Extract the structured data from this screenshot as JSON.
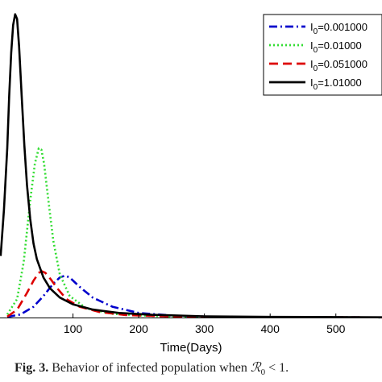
{
  "chart_data": {
    "type": "line",
    "title": "",
    "xlabel": "Time(Days)",
    "ylabel": "",
    "xlim": [
      -10,
      600
    ],
    "ylim": [
      0,
      1
    ],
    "x_ticks": [
      100,
      200,
      300,
      400,
      500
    ],
    "grid": false,
    "legend_position": "top-right",
    "series": [
      {
        "name_prefix": "I",
        "name_sub": "0",
        "name_value": "=0.001000",
        "color": "#0000cc",
        "style": "dash-dot",
        "x": [
          0,
          20,
          40,
          55,
          70,
          80,
          88,
          95,
          110,
          130,
          160,
          200,
          260,
          330,
          400,
          600
        ],
        "y": [
          0.002,
          0.01,
          0.035,
          0.07,
          0.11,
          0.13,
          0.136,
          0.13,
          0.1,
          0.065,
          0.035,
          0.015,
          0.005,
          0.002,
          0.001,
          0.0005
        ]
      },
      {
        "name_prefix": "I",
        "name_sub": "0",
        "name_value": "=0.01000",
        "color": "#33dd33",
        "style": "dotted",
        "x": [
          0,
          15,
          25,
          35,
          42,
          48,
          52,
          56,
          62,
          70,
          80,
          95,
          120,
          160,
          220,
          300,
          400,
          600
        ],
        "y": [
          0.01,
          0.06,
          0.18,
          0.38,
          0.5,
          0.55,
          0.545,
          0.5,
          0.39,
          0.25,
          0.14,
          0.07,
          0.03,
          0.012,
          0.005,
          0.002,
          0.001,
          0.0005
        ]
      },
      {
        "name_prefix": "I",
        "name_sub": "0",
        "name_value": "=0.051000",
        "color": "#dd0000",
        "style": "dashed",
        "x": [
          0,
          15,
          30,
          40,
          48,
          53,
          58,
          66,
          76,
          90,
          110,
          140,
          180,
          240,
          320,
          420,
          600
        ],
        "y": [
          0.003,
          0.025,
          0.08,
          0.12,
          0.145,
          0.15,
          0.145,
          0.125,
          0.095,
          0.06,
          0.035,
          0.018,
          0.008,
          0.004,
          0.002,
          0.001,
          0.0005
        ]
      },
      {
        "name_prefix": "I",
        "name_sub": "0",
        "name_value": "=1.01000",
        "color": "#000000",
        "style": "solid",
        "x": [
          -10,
          -5,
          0,
          3,
          6,
          9,
          12,
          15,
          18,
          22,
          26,
          30,
          35,
          40,
          45,
          55,
          65,
          80,
          100,
          130,
          170,
          220,
          300,
          400,
          600
        ],
        "y": [
          0.2,
          0.35,
          0.55,
          0.72,
          0.86,
          0.95,
          0.985,
          0.97,
          0.88,
          0.72,
          0.56,
          0.43,
          0.32,
          0.24,
          0.19,
          0.13,
          0.095,
          0.065,
          0.043,
          0.026,
          0.015,
          0.009,
          0.004,
          0.002,
          0.0008
        ]
      }
    ]
  },
  "caption": {
    "label": "Fig. 3.",
    "text": "Behavior of infected population when",
    "symbol": "ℛ",
    "symbol_sub": "0",
    "relation": "< 1."
  }
}
